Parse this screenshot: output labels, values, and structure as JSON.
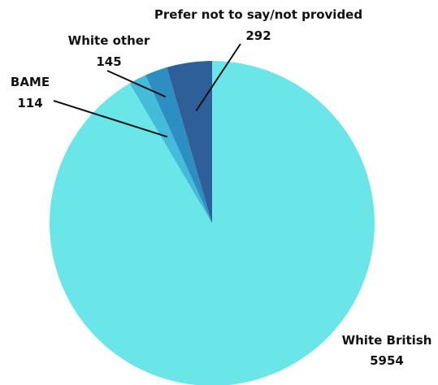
{
  "chart_data": {
    "type": "pie",
    "title": "",
    "slices": [
      {
        "label": "White British",
        "value": 5954,
        "color": "#6ae5e8"
      },
      {
        "label": "BAME",
        "value": 114,
        "color": "#44bbd9"
      },
      {
        "label": "White other",
        "value": 145,
        "color": "#2d8fc1"
      },
      {
        "label": "Prefer not to say/not provided",
        "value": 292,
        "color": "#2e5f99"
      }
    ]
  }
}
